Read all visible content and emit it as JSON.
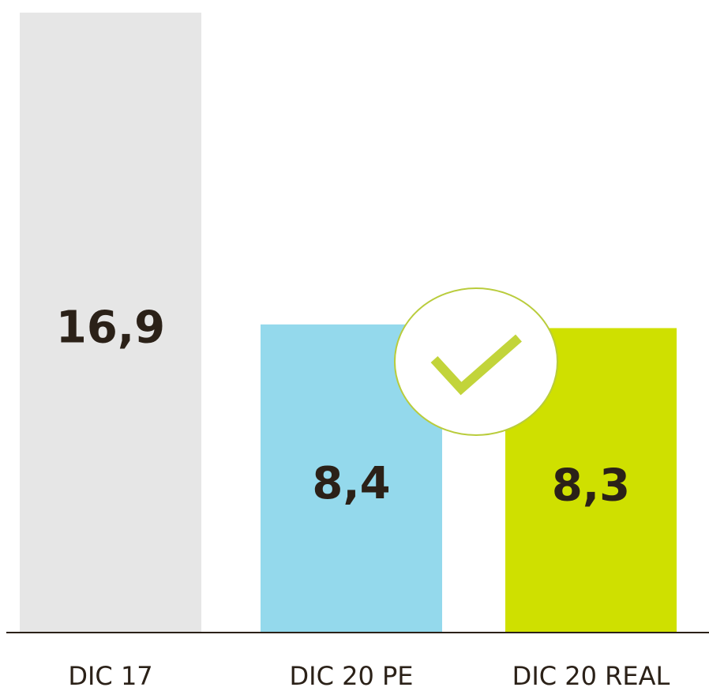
{
  "chart_data": {
    "type": "bar",
    "categories": [
      "DIC 17",
      "DIC 20 PE",
      "DIC 20 REAL"
    ],
    "values": [
      16.9,
      8.4,
      8.3
    ],
    "value_labels": [
      "16,9",
      "8,4",
      "8,3"
    ],
    "colors": [
      "#e6e6e6",
      "#94d9ec",
      "#cfe000"
    ]
  }
}
